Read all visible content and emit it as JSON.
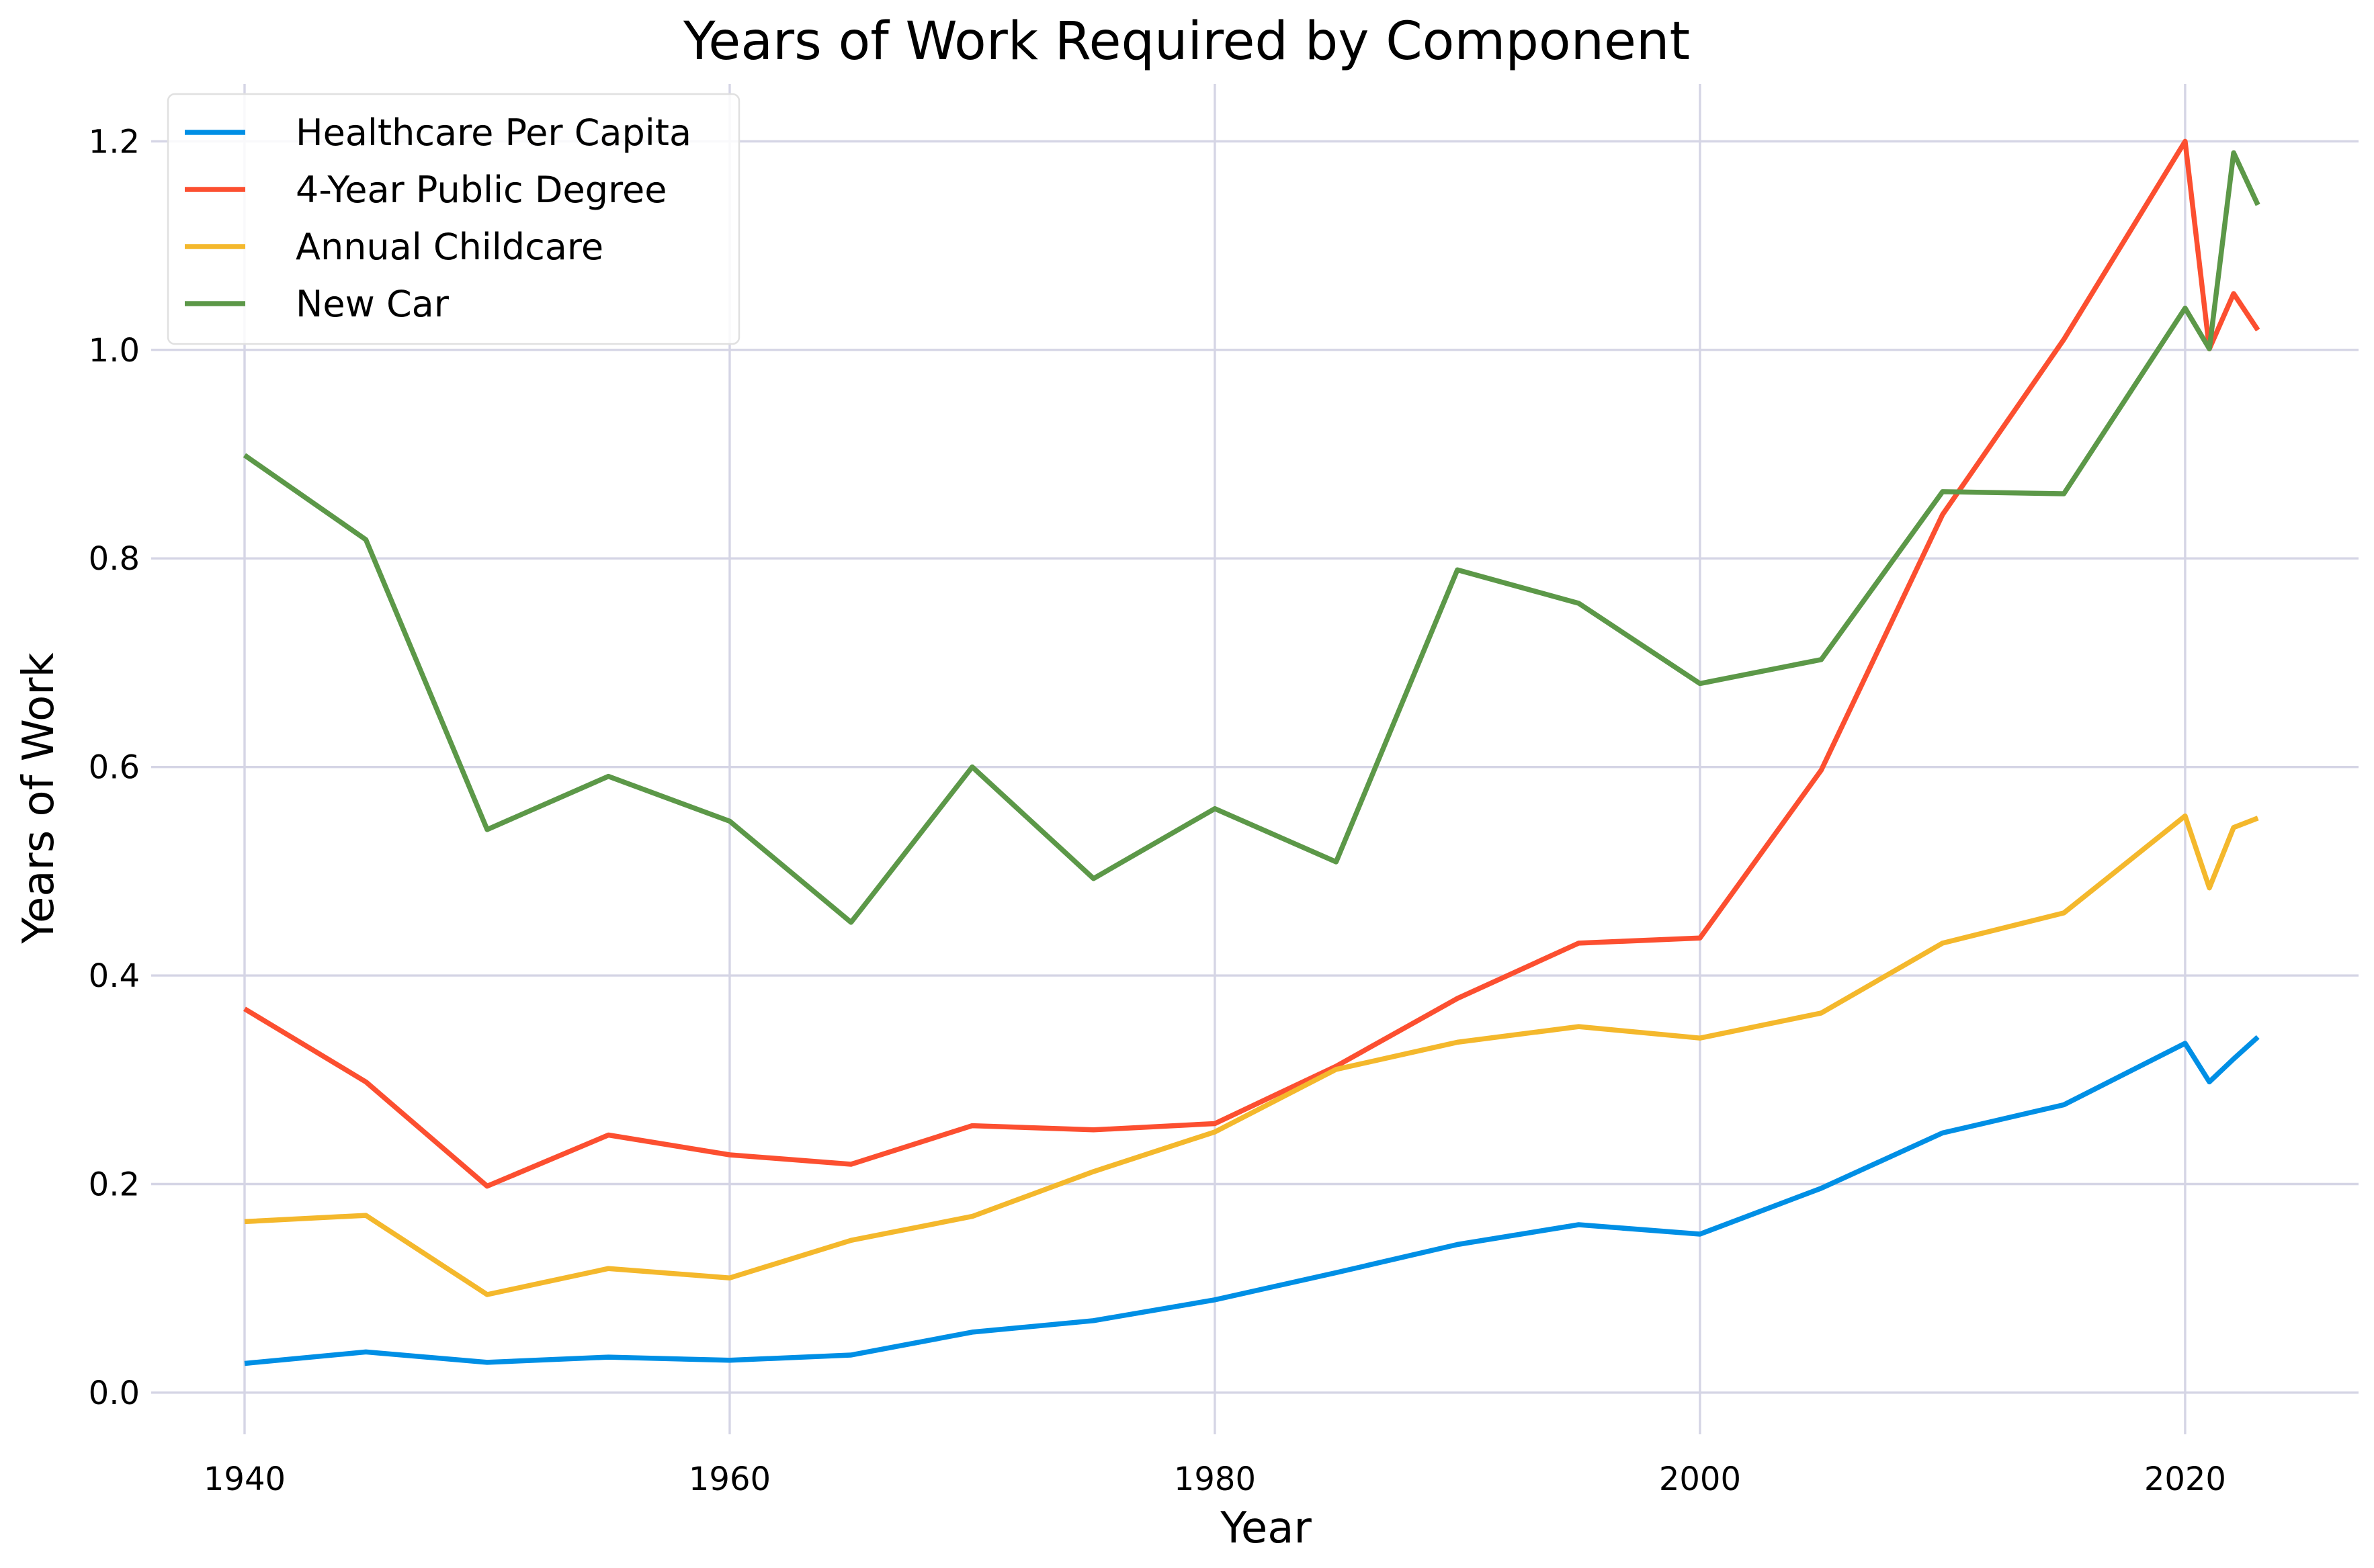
{
  "chart_data": {
    "type": "line",
    "title": "Years of Work Required by Component",
    "xlabel": "Year",
    "ylabel": "Years of Work",
    "xlim": [
      1936.15,
      2027.15
    ],
    "ylim": [
      -0.04,
      1.255
    ],
    "x_ticks": [
      1940,
      1960,
      1980,
      2000,
      2020
    ],
    "y_ticks": [
      0.0,
      0.2,
      0.4,
      0.6,
      0.8,
      1.0,
      1.2
    ],
    "y_tick_labels": [
      "0.0",
      "0.2",
      "0.4",
      "0.6",
      "0.8",
      "1.0",
      "1.2"
    ],
    "grid": true,
    "legend_position": "top-left",
    "x": [
      1940,
      1945,
      1950,
      1955,
      1960,
      1965,
      1970,
      1975,
      1980,
      1985,
      1990,
      1995,
      2000,
      2005,
      2010,
      2015,
      2020,
      2021,
      2022,
      2023
    ],
    "series": [
      {
        "name": "Healthcare Per Capita",
        "color": "#008fe5",
        "values": [
          0.028,
          0.039,
          0.029,
          0.034,
          0.031,
          0.036,
          0.058,
          0.069,
          0.089,
          0.115,
          0.142,
          0.161,
          0.152,
          0.196,
          0.249,
          0.276,
          0.335,
          0.298,
          0.32,
          0.341
        ]
      },
      {
        "name": "4-Year Public Degree",
        "color": "#fc4f30",
        "values": [
          0.368,
          0.298,
          0.198,
          0.247,
          0.228,
          0.219,
          0.256,
          0.252,
          0.258,
          0.313,
          0.378,
          0.431,
          0.436,
          0.597,
          0.842,
          1.01,
          1.2,
          1.001,
          1.054,
          1.019
        ]
      },
      {
        "name": "Annual Childcare",
        "color": "#f4b82c",
        "values": [
          0.164,
          0.17,
          0.094,
          0.119,
          0.11,
          0.146,
          0.169,
          0.212,
          0.25,
          0.31,
          0.336,
          0.351,
          0.34,
          0.364,
          0.431,
          0.46,
          0.553,
          0.484,
          0.542,
          0.551
        ]
      },
      {
        "name": "New Car",
        "color": "#5c9848",
        "values": [
          0.899,
          0.818,
          0.54,
          0.591,
          0.548,
          0.451,
          0.6,
          0.493,
          0.56,
          0.509,
          0.789,
          0.757,
          0.68,
          0.703,
          0.864,
          0.862,
          1.04,
          1.001,
          1.189,
          1.139
        ]
      }
    ]
  }
}
